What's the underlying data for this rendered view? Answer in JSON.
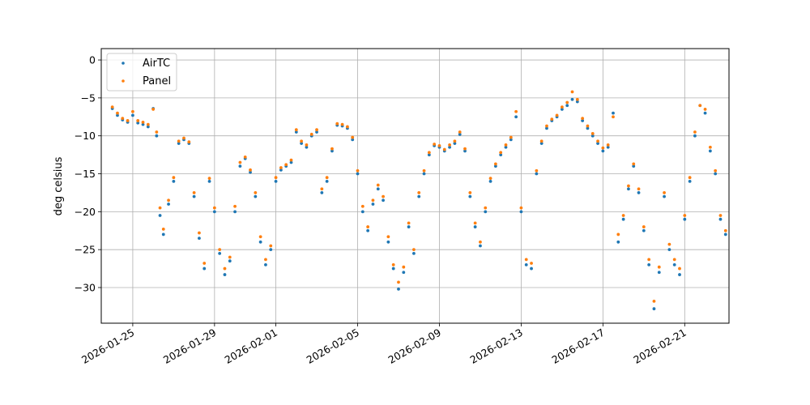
{
  "chart_data": {
    "type": "scatter",
    "title": "",
    "xlabel": "",
    "ylabel": "deg celsius",
    "x_type": "date",
    "xlim": [
      "2026-01-23T11:00",
      "2026-02-23T04:00"
    ],
    "ylim": [
      -34.7,
      1.5
    ],
    "x_ticks": [
      "2026-01-25",
      "2026-01-29",
      "2026-02-01",
      "2026-02-05",
      "2026-02-09",
      "2026-02-13",
      "2026-02-17",
      "2026-02-21"
    ],
    "y_ticks": [
      0,
      -5,
      -10,
      -15,
      -20,
      -25,
      -30
    ],
    "grid": true,
    "legend": "top-left",
    "series": [
      {
        "name": "AirTC",
        "color": "#1f77b4",
        "points": [
          [
            "2026-01-24T00:00",
            -6.4
          ],
          [
            "2026-01-24T06:00",
            -7.3
          ],
          [
            "2026-01-24T12:00",
            -7.9
          ],
          [
            "2026-01-24T18:00",
            -8.2
          ],
          [
            "2026-01-25T00:00",
            -7.3
          ],
          [
            "2026-01-25T06:00",
            -8.3
          ],
          [
            "2026-01-25T12:00",
            -8.5
          ],
          [
            "2026-01-25T18:00",
            -8.8
          ],
          [
            "2026-01-26T00:00",
            -6.4
          ],
          [
            "2026-01-26T04:00",
            -10.0
          ],
          [
            "2026-01-26T08:00",
            -20.5
          ],
          [
            "2026-01-26T12:00",
            -23.0
          ],
          [
            "2026-01-26T18:00",
            -19.0
          ],
          [
            "2026-01-27T00:00",
            -16.0
          ],
          [
            "2026-01-27T06:00",
            -11.0
          ],
          [
            "2026-01-27T12:00",
            -10.5
          ],
          [
            "2026-01-27T18:00",
            -11.0
          ],
          [
            "2026-01-28T00:00",
            -18.0
          ],
          [
            "2026-01-28T06:00",
            -23.5
          ],
          [
            "2026-01-28T12:00",
            -27.5
          ],
          [
            "2026-01-28T18:00",
            -16.0
          ],
          [
            "2026-01-29T00:00",
            -20.0
          ],
          [
            "2026-01-29T06:00",
            -25.5
          ],
          [
            "2026-01-29T12:00",
            -28.3
          ],
          [
            "2026-01-29T18:00",
            -26.5
          ],
          [
            "2026-01-30T00:00",
            -20.0
          ],
          [
            "2026-01-30T06:00",
            -14.0
          ],
          [
            "2026-01-30T12:00",
            -13.0
          ],
          [
            "2026-01-30T18:00",
            -14.8
          ],
          [
            "2026-01-31T00:00",
            -18.0
          ],
          [
            "2026-01-31T06:00",
            -24.0
          ],
          [
            "2026-01-31T12:00",
            -27.0
          ],
          [
            "2026-01-31T18:00",
            -25.0
          ],
          [
            "2026-02-01T00:00",
            -16.0
          ],
          [
            "2026-02-01T06:00",
            -14.5
          ],
          [
            "2026-02-01T12:00",
            -14.0
          ],
          [
            "2026-02-01T18:00",
            -13.5
          ],
          [
            "2026-02-02T00:00",
            -9.5
          ],
          [
            "2026-02-02T06:00",
            -11.0
          ],
          [
            "2026-02-02T12:00",
            -11.5
          ],
          [
            "2026-02-02T18:00",
            -10.0
          ],
          [
            "2026-02-03T00:00",
            -9.5
          ],
          [
            "2026-02-03T06:00",
            -17.5
          ],
          [
            "2026-02-03T12:00",
            -16.0
          ],
          [
            "2026-02-03T18:00",
            -12.0
          ],
          [
            "2026-02-04T00:00",
            -8.6
          ],
          [
            "2026-02-04T06:00",
            -8.7
          ],
          [
            "2026-02-04T12:00",
            -9.0
          ],
          [
            "2026-02-04T18:00",
            -10.5
          ],
          [
            "2026-02-05T00:00",
            -15.0
          ],
          [
            "2026-02-05T06:00",
            -20.0
          ],
          [
            "2026-02-05T12:00",
            -22.5
          ],
          [
            "2026-02-05T18:00",
            -19.0
          ],
          [
            "2026-02-06T00:00",
            -17.0
          ],
          [
            "2026-02-06T06:00",
            -18.5
          ],
          [
            "2026-02-06T12:00",
            -24.0
          ],
          [
            "2026-02-06T18:00",
            -27.5
          ],
          [
            "2026-02-07T00:00",
            -30.2
          ],
          [
            "2026-02-07T06:00",
            -28.0
          ],
          [
            "2026-02-07T12:00",
            -22.0
          ],
          [
            "2026-02-07T18:00",
            -25.5
          ],
          [
            "2026-02-08T00:00",
            -18.0
          ],
          [
            "2026-02-08T06:00",
            -15.0
          ],
          [
            "2026-02-08T12:00",
            -12.5
          ],
          [
            "2026-02-08T18:00",
            -11.3
          ],
          [
            "2026-02-09T00:00",
            -11.5
          ],
          [
            "2026-02-09T06:00",
            -12.0
          ],
          [
            "2026-02-09T12:00",
            -11.5
          ],
          [
            "2026-02-09T18:00",
            -11.0
          ],
          [
            "2026-02-10T00:00",
            -9.8
          ],
          [
            "2026-02-10T06:00",
            -12.0
          ],
          [
            "2026-02-10T12:00",
            -18.0
          ],
          [
            "2026-02-10T18:00",
            -22.0
          ],
          [
            "2026-02-11T00:00",
            -24.5
          ],
          [
            "2026-02-11T06:00",
            -20.0
          ],
          [
            "2026-02-11T12:00",
            -16.0
          ],
          [
            "2026-02-11T18:00",
            -14.0
          ],
          [
            "2026-02-12T00:00",
            -12.5
          ],
          [
            "2026-02-12T06:00",
            -11.5
          ],
          [
            "2026-02-12T12:00",
            -10.5
          ],
          [
            "2026-02-12T18:00",
            -7.5
          ],
          [
            "2026-02-13T00:00",
            -20.0
          ],
          [
            "2026-02-13T06:00",
            -27.0
          ],
          [
            "2026-02-13T12:00",
            -27.5
          ],
          [
            "2026-02-13T18:00",
            -15.0
          ],
          [
            "2026-02-14T00:00",
            -11.0
          ],
          [
            "2026-02-14T06:00",
            -9.0
          ],
          [
            "2026-02-14T12:00",
            -8.0
          ],
          [
            "2026-02-14T18:00",
            -7.5
          ],
          [
            "2026-02-15T00:00",
            -6.5
          ],
          [
            "2026-02-15T06:00",
            -6.0
          ],
          [
            "2026-02-15T12:00",
            -5.2
          ],
          [
            "2026-02-15T18:00",
            -5.5
          ],
          [
            "2026-02-16T00:00",
            -8.0
          ],
          [
            "2026-02-16T06:00",
            -9.0
          ],
          [
            "2026-02-16T12:00",
            -10.0
          ],
          [
            "2026-02-16T18:00",
            -11.0
          ],
          [
            "2026-02-17T00:00",
            -12.0
          ],
          [
            "2026-02-17T06:00",
            -11.5
          ],
          [
            "2026-02-17T12:00",
            -7.0
          ],
          [
            "2026-02-17T18:00",
            -24.0
          ],
          [
            "2026-02-18T00:00",
            -21.0
          ],
          [
            "2026-02-18T06:00",
            -17.0
          ],
          [
            "2026-02-18T12:00",
            -14.0
          ],
          [
            "2026-02-18T18:00",
            -17.5
          ],
          [
            "2026-02-19T00:00",
            -22.5
          ],
          [
            "2026-02-19T06:00",
            -27.0
          ],
          [
            "2026-02-19T12:00",
            -32.8
          ],
          [
            "2026-02-19T18:00",
            -28.0
          ],
          [
            "2026-02-20T00:00",
            -18.0
          ],
          [
            "2026-02-20T06:00",
            -25.0
          ],
          [
            "2026-02-20T12:00",
            -27.0
          ],
          [
            "2026-02-20T18:00",
            -28.3
          ],
          [
            "2026-02-21T00:00",
            -21.0
          ],
          [
            "2026-02-21T06:00",
            -16.0
          ],
          [
            "2026-02-21T12:00",
            -10.0
          ],
          [
            "2026-02-21T18:00",
            -6.0
          ],
          [
            "2026-02-22T00:00",
            -7.0
          ],
          [
            "2026-02-22T06:00",
            -12.0
          ],
          [
            "2026-02-22T12:00",
            -15.0
          ],
          [
            "2026-02-22T18:00",
            -21.0
          ],
          [
            "2026-02-23T00:00",
            -23.0
          ]
        ]
      },
      {
        "name": "Panel",
        "color": "#ff7f0e",
        "points": [
          [
            "2026-01-24T00:00",
            -6.2
          ],
          [
            "2026-01-24T06:00",
            -7.0
          ],
          [
            "2026-01-24T12:00",
            -7.7
          ],
          [
            "2026-01-24T18:00",
            -8.0
          ],
          [
            "2026-01-25T00:00",
            -6.8
          ],
          [
            "2026-01-25T06:00",
            -8.0
          ],
          [
            "2026-01-25T12:00",
            -8.2
          ],
          [
            "2026-01-25T18:00",
            -8.5
          ],
          [
            "2026-01-26T00:00",
            -6.5
          ],
          [
            "2026-01-26T04:00",
            -9.5
          ],
          [
            "2026-01-26T08:00",
            -19.5
          ],
          [
            "2026-01-26T12:00",
            -22.3
          ],
          [
            "2026-01-26T18:00",
            -18.5
          ],
          [
            "2026-01-27T00:00",
            -15.5
          ],
          [
            "2026-01-27T06:00",
            -10.7
          ],
          [
            "2026-01-27T12:00",
            -10.3
          ],
          [
            "2026-01-27T18:00",
            -10.8
          ],
          [
            "2026-01-28T00:00",
            -17.5
          ],
          [
            "2026-01-28T06:00",
            -22.8
          ],
          [
            "2026-01-28T12:00",
            -26.8
          ],
          [
            "2026-01-28T18:00",
            -15.6
          ],
          [
            "2026-01-29T00:00",
            -19.5
          ],
          [
            "2026-01-29T06:00",
            -25.0
          ],
          [
            "2026-01-29T12:00",
            -27.5
          ],
          [
            "2026-01-29T18:00",
            -26.0
          ],
          [
            "2026-01-30T00:00",
            -19.3
          ],
          [
            "2026-01-30T06:00",
            -13.5
          ],
          [
            "2026-01-30T12:00",
            -12.8
          ],
          [
            "2026-01-30T18:00",
            -14.5
          ],
          [
            "2026-01-31T00:00",
            -17.5
          ],
          [
            "2026-01-31T06:00",
            -23.3
          ],
          [
            "2026-01-31T12:00",
            -26.3
          ],
          [
            "2026-01-31T18:00",
            -24.5
          ],
          [
            "2026-02-01T00:00",
            -15.5
          ],
          [
            "2026-02-01T06:00",
            -14.2
          ],
          [
            "2026-02-01T12:00",
            -13.8
          ],
          [
            "2026-02-01T18:00",
            -13.2
          ],
          [
            "2026-02-02T00:00",
            -9.2
          ],
          [
            "2026-02-02T06:00",
            -10.7
          ],
          [
            "2026-02-02T12:00",
            -11.2
          ],
          [
            "2026-02-02T18:00",
            -9.8
          ],
          [
            "2026-02-03T00:00",
            -9.2
          ],
          [
            "2026-02-03T06:00",
            -17.0
          ],
          [
            "2026-02-03T12:00",
            -15.5
          ],
          [
            "2026-02-03T18:00",
            -11.7
          ],
          [
            "2026-02-04T00:00",
            -8.4
          ],
          [
            "2026-02-04T06:00",
            -8.5
          ],
          [
            "2026-02-04T12:00",
            -8.8
          ],
          [
            "2026-02-04T18:00",
            -10.2
          ],
          [
            "2026-02-05T00:00",
            -14.6
          ],
          [
            "2026-02-05T06:00",
            -19.3
          ],
          [
            "2026-02-05T12:00",
            -22.0
          ],
          [
            "2026-02-05T18:00",
            -18.5
          ],
          [
            "2026-02-06T00:00",
            -16.5
          ],
          [
            "2026-02-06T06:00",
            -18.0
          ],
          [
            "2026-02-06T12:00",
            -23.3
          ],
          [
            "2026-02-06T18:00",
            -27.0
          ],
          [
            "2026-02-07T00:00",
            -29.3
          ],
          [
            "2026-02-07T06:00",
            -27.3
          ],
          [
            "2026-02-07T12:00",
            -21.5
          ],
          [
            "2026-02-07T18:00",
            -25.0
          ],
          [
            "2026-02-08T00:00",
            -17.5
          ],
          [
            "2026-02-08T06:00",
            -14.6
          ],
          [
            "2026-02-08T12:00",
            -12.2
          ],
          [
            "2026-02-08T18:00",
            -11.1
          ],
          [
            "2026-02-09T00:00",
            -11.3
          ],
          [
            "2026-02-09T06:00",
            -11.8
          ],
          [
            "2026-02-09T12:00",
            -11.2
          ],
          [
            "2026-02-09T18:00",
            -10.7
          ],
          [
            "2026-02-10T00:00",
            -9.5
          ],
          [
            "2026-02-10T06:00",
            -11.7
          ],
          [
            "2026-02-10T12:00",
            -17.5
          ],
          [
            "2026-02-10T18:00",
            -21.5
          ],
          [
            "2026-02-11T00:00",
            -24.0
          ],
          [
            "2026-02-11T06:00",
            -19.5
          ],
          [
            "2026-02-11T12:00",
            -15.6
          ],
          [
            "2026-02-11T18:00",
            -13.7
          ],
          [
            "2026-02-12T00:00",
            -12.2
          ],
          [
            "2026-02-12T06:00",
            -11.2
          ],
          [
            "2026-02-12T12:00",
            -10.2
          ],
          [
            "2026-02-12T18:00",
            -6.8
          ],
          [
            "2026-02-13T00:00",
            -19.5
          ],
          [
            "2026-02-13T06:00",
            -26.3
          ],
          [
            "2026-02-13T12:00",
            -26.8
          ],
          [
            "2026-02-13T18:00",
            -14.6
          ],
          [
            "2026-02-14T00:00",
            -10.7
          ],
          [
            "2026-02-14T06:00",
            -8.7
          ],
          [
            "2026-02-14T12:00",
            -7.8
          ],
          [
            "2026-02-14T18:00",
            -7.3
          ],
          [
            "2026-02-15T00:00",
            -6.2
          ],
          [
            "2026-02-15T06:00",
            -5.6
          ],
          [
            "2026-02-15T12:00",
            -4.2
          ],
          [
            "2026-02-15T18:00",
            -5.2
          ],
          [
            "2026-02-16T00:00",
            -7.7
          ],
          [
            "2026-02-16T06:00",
            -8.7
          ],
          [
            "2026-02-16T12:00",
            -9.7
          ],
          [
            "2026-02-16T18:00",
            -10.7
          ],
          [
            "2026-02-17T00:00",
            -11.6
          ],
          [
            "2026-02-17T06:00",
            -11.2
          ],
          [
            "2026-02-17T12:00",
            -7.5
          ],
          [
            "2026-02-17T18:00",
            -23.0
          ],
          [
            "2026-02-18T00:00",
            -20.5
          ],
          [
            "2026-02-18T06:00",
            -16.6
          ],
          [
            "2026-02-18T12:00",
            -13.7
          ],
          [
            "2026-02-18T18:00",
            -17.0
          ],
          [
            "2026-02-19T00:00",
            -22.0
          ],
          [
            "2026-02-19T06:00",
            -26.3
          ],
          [
            "2026-02-19T12:00",
            -31.8
          ],
          [
            "2026-02-19T18:00",
            -27.3
          ],
          [
            "2026-02-20T00:00",
            -17.5
          ],
          [
            "2026-02-20T06:00",
            -24.3
          ],
          [
            "2026-02-20T12:00",
            -26.3
          ],
          [
            "2026-02-20T18:00",
            -27.5
          ],
          [
            "2026-02-21T00:00",
            -20.5
          ],
          [
            "2026-02-21T06:00",
            -15.5
          ],
          [
            "2026-02-21T12:00",
            -9.5
          ],
          [
            "2026-02-21T18:00",
            -6.0
          ],
          [
            "2026-02-22T00:00",
            -6.5
          ],
          [
            "2026-02-22T06:00",
            -11.5
          ],
          [
            "2026-02-22T12:00",
            -14.6
          ],
          [
            "2026-02-22T18:00",
            -20.5
          ],
          [
            "2026-02-23T00:00",
            -22.5
          ]
        ]
      }
    ]
  }
}
